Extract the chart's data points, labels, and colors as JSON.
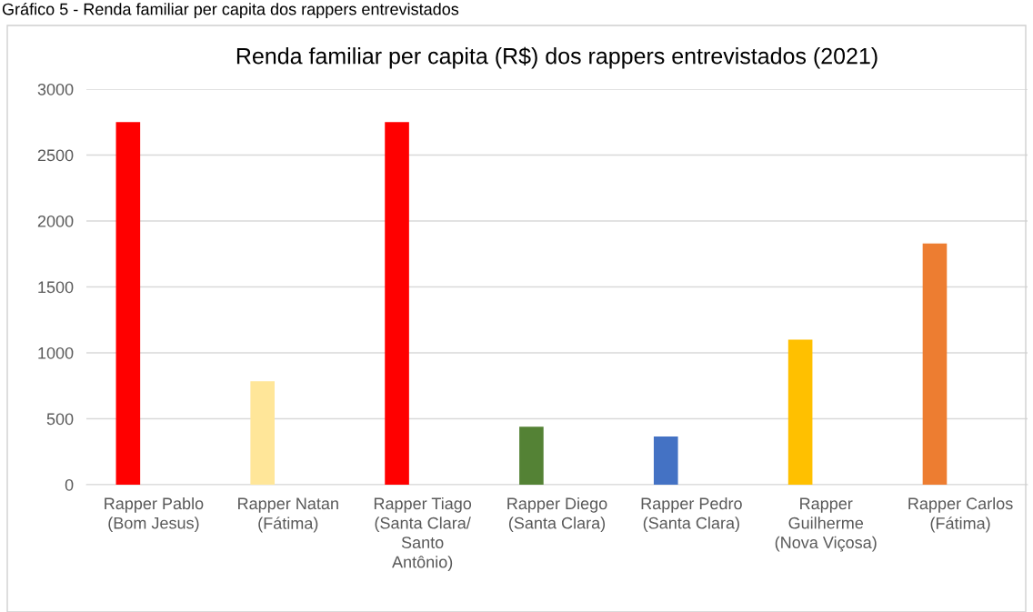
{
  "chart_data": {
    "type": "bar",
    "title": "Renda familiar per capita (R$) dos rappers entrevistados (2021)",
    "annotations": [
      "Gráfico 5 - Renda familiar per capita dos rappers entrevistados"
    ],
    "categories": [
      "Rapper Pablo\n(Bom Jesus)",
      "Rapper Natan\n(Fátima)",
      "Rapper Tiago\n(Santa Clara/\nSanto\nAntônio)",
      "Rapper Diego\n(Santa Clara)",
      "Rapper Pedro\n(Santa Clara)",
      "Rapper\nGuilherme\n(Nova Viçosa)",
      "Rapper Carlos\n(Fátima)"
    ],
    "values": [
      2750,
      785,
      2750,
      440,
      365,
      1100,
      1830
    ],
    "colors": [
      "#ff0000",
      "#ffe699",
      "#ff0000",
      "#548235",
      "#4472c4",
      "#ffc000",
      "#ed7d31"
    ],
    "ylim": [
      0,
      3000
    ],
    "yticks": [
      0,
      500,
      1000,
      1500,
      2000,
      2500,
      3000
    ],
    "grid": "y",
    "legend": false
  }
}
